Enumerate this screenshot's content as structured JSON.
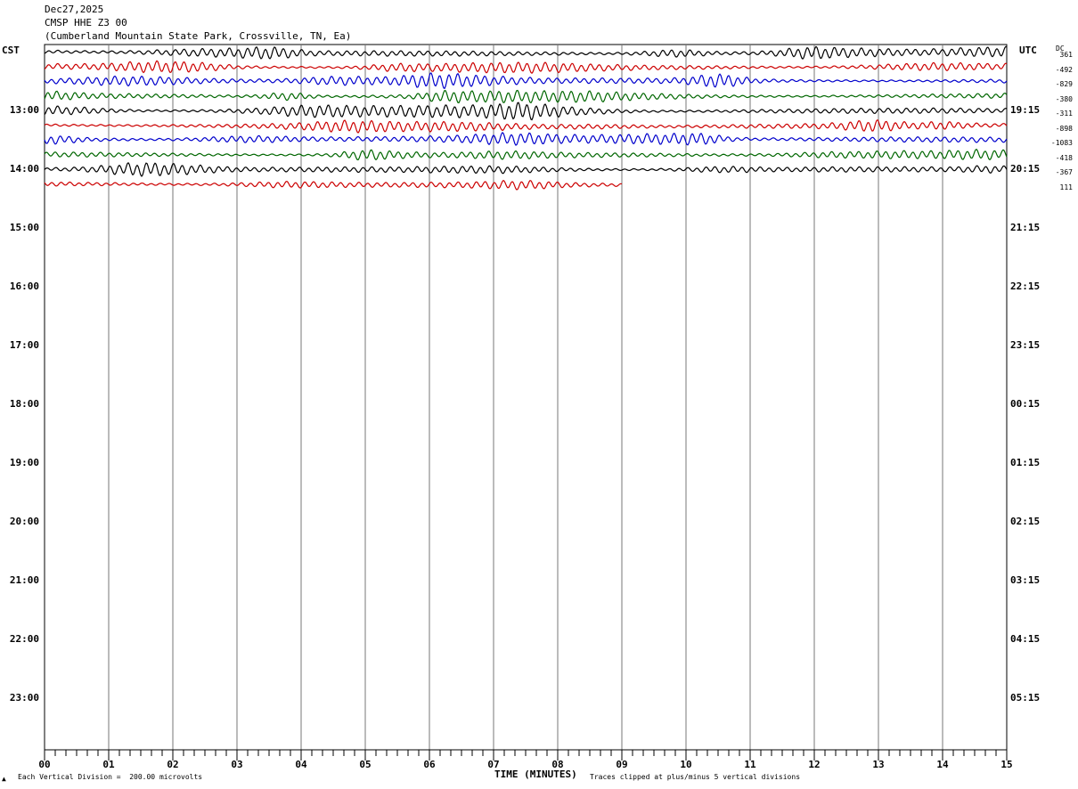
{
  "header": {
    "date": "Dec27,2025",
    "station": "CMSP HHE Z3 00",
    "location": "(Cumberland Mountain State Park, Crossville, TN, Ea)"
  },
  "left_zone": "CST",
  "right_zone": "UTC",
  "dc_label": "DC",
  "chart_data": {
    "type": "line",
    "xlabel": "TIME (MINUTES)",
    "x_ticks": [
      "00",
      "01",
      "02",
      "03",
      "04",
      "05",
      "06",
      "07",
      "08",
      "09",
      "10",
      "11",
      "12",
      "13",
      "14",
      "15"
    ],
    "xlim": [
      0,
      15
    ],
    "left_hours": [
      "13:00",
      "14:00",
      "15:00",
      "16:00",
      "17:00",
      "18:00",
      "19:00",
      "20:00",
      "21:00",
      "22:00",
      "23:00"
    ],
    "right_hours": [
      "19:15",
      "20:15",
      "21:15",
      "22:15",
      "23:15",
      "00:15",
      "01:15",
      "02:15",
      "03:15",
      "04:15",
      "05:15"
    ],
    "dc_offsets": [
      "361",
      "-492",
      "-829",
      "-380",
      "-311",
      "-898",
      "-1083",
      "-418",
      "-367",
      "111"
    ],
    "trace_colors": [
      "#000000",
      "#cc0000",
      "#0000cc",
      "#006600"
    ],
    "trace_count": 10,
    "last_trace_end_minute": 9,
    "scale_note": "Each Vertical Division =  200.00 microvolts",
    "clip_note": "Traces clipped at plus/minus 5 vertical divisions"
  }
}
